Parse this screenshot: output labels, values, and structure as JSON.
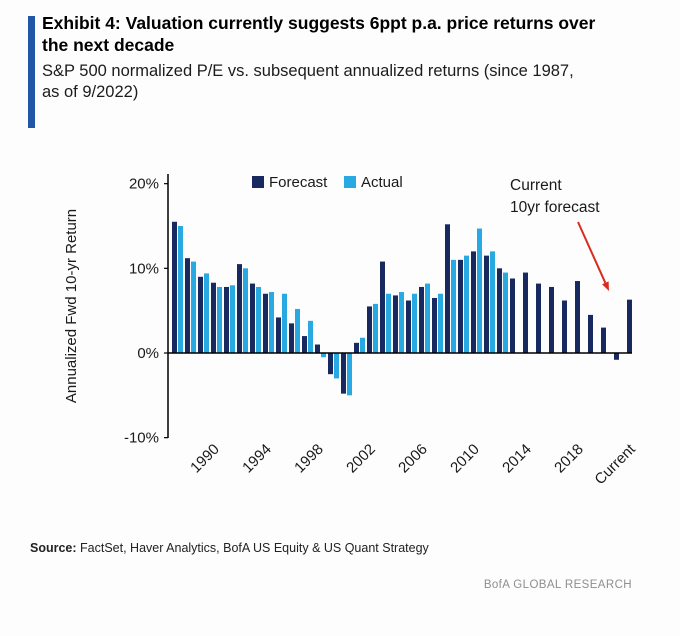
{
  "header": {
    "title_line1": "Exhibit 4: Valuation currently suggests 6ppt p.a. price returns over",
    "title_line2": "the next decade",
    "subtitle_line1": "S&P 500 normalized P/E vs. subsequent annualized returns (since 1987,",
    "subtitle_line2": "as of 9/2022)"
  },
  "footer": {
    "source_label": "Source:",
    "source_text": " FactSet, Haver Analytics, BofA US Equity & US Quant Strategy",
    "brand": "BofA GLOBAL RESEARCH"
  },
  "colors": {
    "accent_bar": "#2257a5",
    "forecast_navy": "#17295e",
    "actual_blue": "#29a9e1",
    "arrow_red": "#d92b1f",
    "brand_gray": "#8e8e8e"
  },
  "chart_data": {
    "type": "bar",
    "title": "Exhibit 4: Valuation currently suggests 6ppt p.a. price returns over the next decade",
    "subtitle": "S&P 500 normalized P/E vs. subsequent annualized returns (since 1987, as of 9/2022)",
    "ylabel": "Annualized Fwd 10-yr Return",
    "xlabel": "",
    "grid": false,
    "legend_position": "top",
    "ylim": [
      -12,
      21
    ],
    "yticks": [
      20,
      10,
      0,
      -10
    ],
    "ytick_labels": [
      "20%",
      "10%",
      "0%",
      "-10%"
    ],
    "xtick_labels": [
      "1990",
      "1994",
      "1998",
      "2002",
      "2006",
      "2010",
      "2014",
      "2018",
      "Current"
    ],
    "categories": [
      "1987",
      "1988",
      "1989",
      "1990",
      "1991",
      "1992",
      "1993",
      "1994",
      "1995",
      "1996",
      "1997",
      "1998",
      "1999",
      "2000",
      "2001",
      "2002",
      "2003",
      "2004",
      "2005",
      "2006",
      "2007",
      "2008",
      "2009",
      "2010",
      "2011",
      "2012",
      "2013",
      "2014",
      "2015",
      "2016",
      "2017",
      "2018",
      "2019",
      "2020",
      "2021",
      "Current"
    ],
    "series": [
      {
        "name": "Forecast",
        "color": "#17295e",
        "values": [
          15.5,
          11.2,
          9.0,
          8.3,
          7.8,
          10.5,
          8.2,
          7.0,
          4.2,
          3.5,
          2.0,
          1.0,
          -2.5,
          -4.8,
          1.2,
          5.5,
          10.8,
          6.8,
          6.2,
          7.8,
          6.5,
          15.2,
          11.0,
          12.0,
          11.5,
          10.0,
          8.8,
          9.5,
          8.2,
          7.8,
          6.2,
          8.5,
          4.5,
          3.0,
          -0.8,
          6.3
        ]
      },
      {
        "name": "Actual",
        "color": "#29a9e1",
        "values": [
          15.0,
          10.8,
          9.4,
          7.8,
          8.0,
          10.0,
          7.8,
          7.2,
          7.0,
          5.2,
          3.8,
          -0.5,
          -3.0,
          -5.0,
          1.8,
          5.8,
          7.0,
          7.2,
          7.0,
          8.2,
          7.0,
          11.0,
          11.5,
          14.7,
          12.0,
          9.5,
          null,
          null,
          null,
          null,
          null,
          null,
          null,
          null,
          null,
          null
        ]
      }
    ],
    "annotation": {
      "lines": [
        "Current",
        "10yr forecast"
      ],
      "arrow_color": "#d92b1f"
    }
  }
}
